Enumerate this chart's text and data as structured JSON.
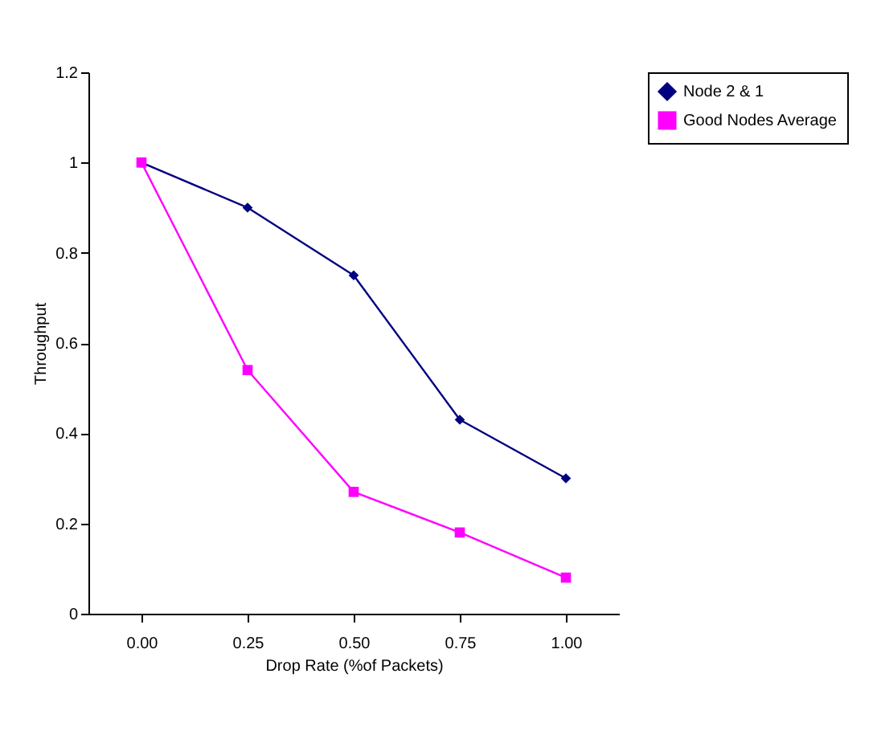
{
  "chart_data": {
    "type": "line",
    "xlabel": "Drop Rate (%of Packets)",
    "ylabel": "Throughput",
    "categories": [
      "0.00",
      "0.25",
      "0.50",
      "0.75",
      "1.00"
    ],
    "series": [
      {
        "name": "Node 2 & 1",
        "color": "#000080",
        "marker": "diamond",
        "values": [
          1,
          0.9,
          0.75,
          0.43,
          0.3
        ]
      },
      {
        "name": "Good Nodes Average",
        "color": "#ff00ff",
        "marker": "square",
        "values": [
          1,
          0.54,
          0.27,
          0.18,
          0.08
        ]
      }
    ],
    "ylim": [
      0,
      1.2
    ],
    "yticks": [
      0,
      0.2,
      0.4,
      0.6,
      0.8,
      1,
      1.2
    ],
    "grid": false,
    "legend": "right",
    "line_style": "solid"
  }
}
